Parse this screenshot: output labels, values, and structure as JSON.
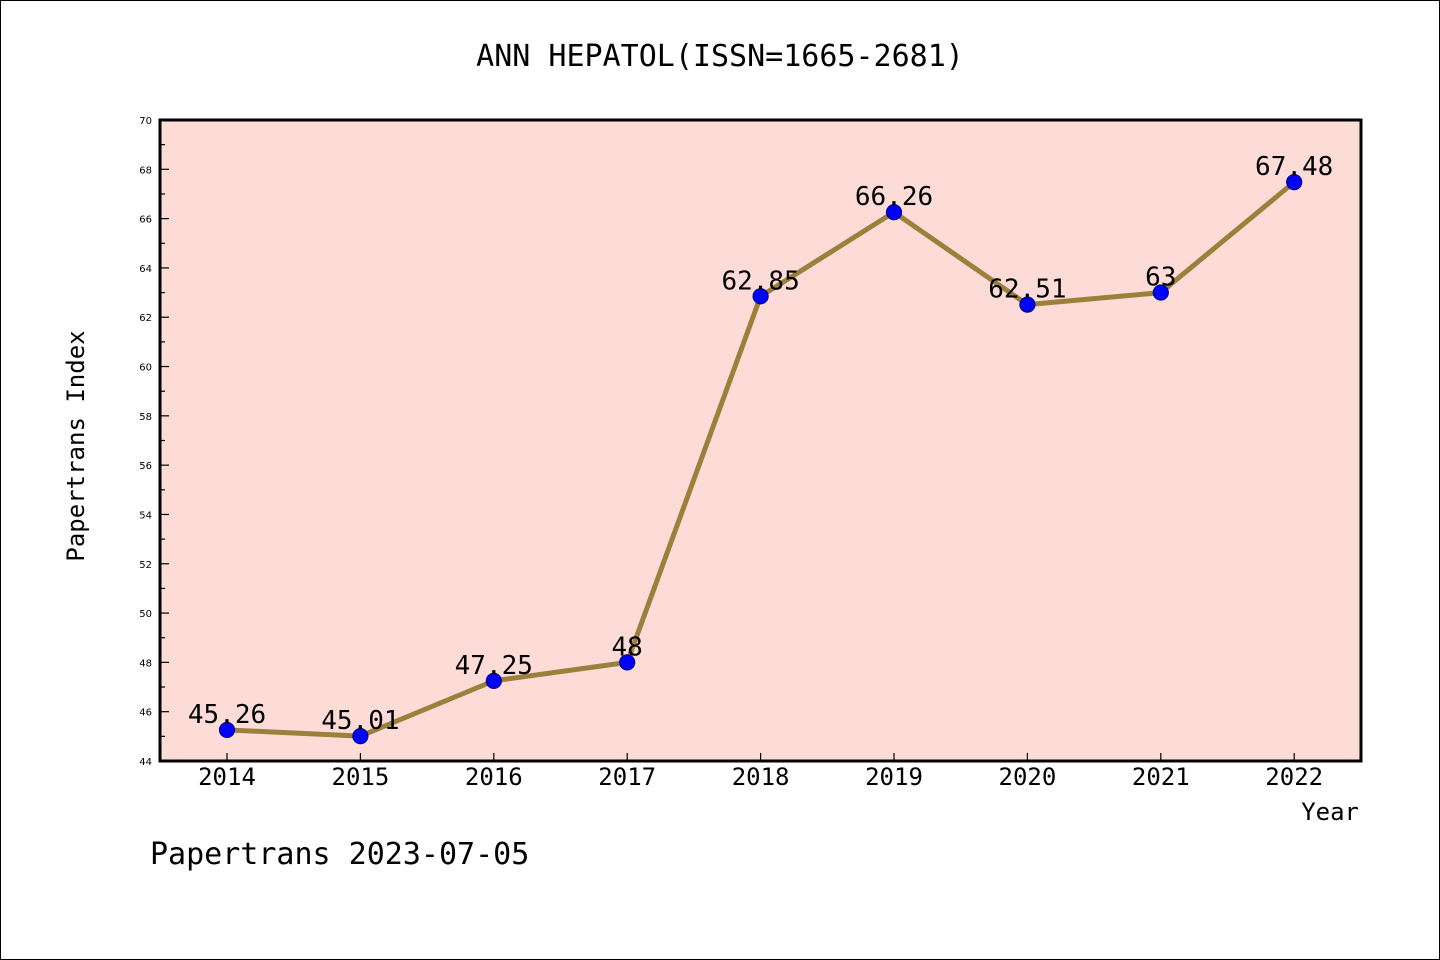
{
  "chart_data": {
    "type": "line",
    "title": "ANN HEPATOL(ISSN=1665-2681)",
    "xlabel": "Year",
    "ylabel": "Papertrans Index",
    "categories": [
      "2014",
      "2015",
      "2016",
      "2017",
      "2018",
      "2019",
      "2020",
      "2021",
      "2022"
    ],
    "series": [
      {
        "values": [
          45.26,
          45.01,
          47.25,
          48,
          62.85,
          66.26,
          62.51,
          63,
          67.48
        ],
        "labels": [
          "45.26",
          "45.01",
          "47.25",
          "48",
          "62.85",
          "66.26",
          "62.51",
          "63",
          "67.48"
        ]
      }
    ],
    "ylim": [
      44,
      70
    ],
    "yticks": [
      "44",
      "46",
      "48",
      "50",
      "52",
      "54",
      "56",
      "58",
      "60",
      "62",
      "64",
      "66",
      "68",
      "70"
    ],
    "grid": false,
    "legend": "none",
    "colors": {
      "plot_background": "#fddcd8",
      "line": "#9b803c",
      "marker": "#0000ff",
      "marker_edge": "#00008b"
    }
  },
  "footer": {
    "text": "Papertrans 2023-07-05"
  }
}
